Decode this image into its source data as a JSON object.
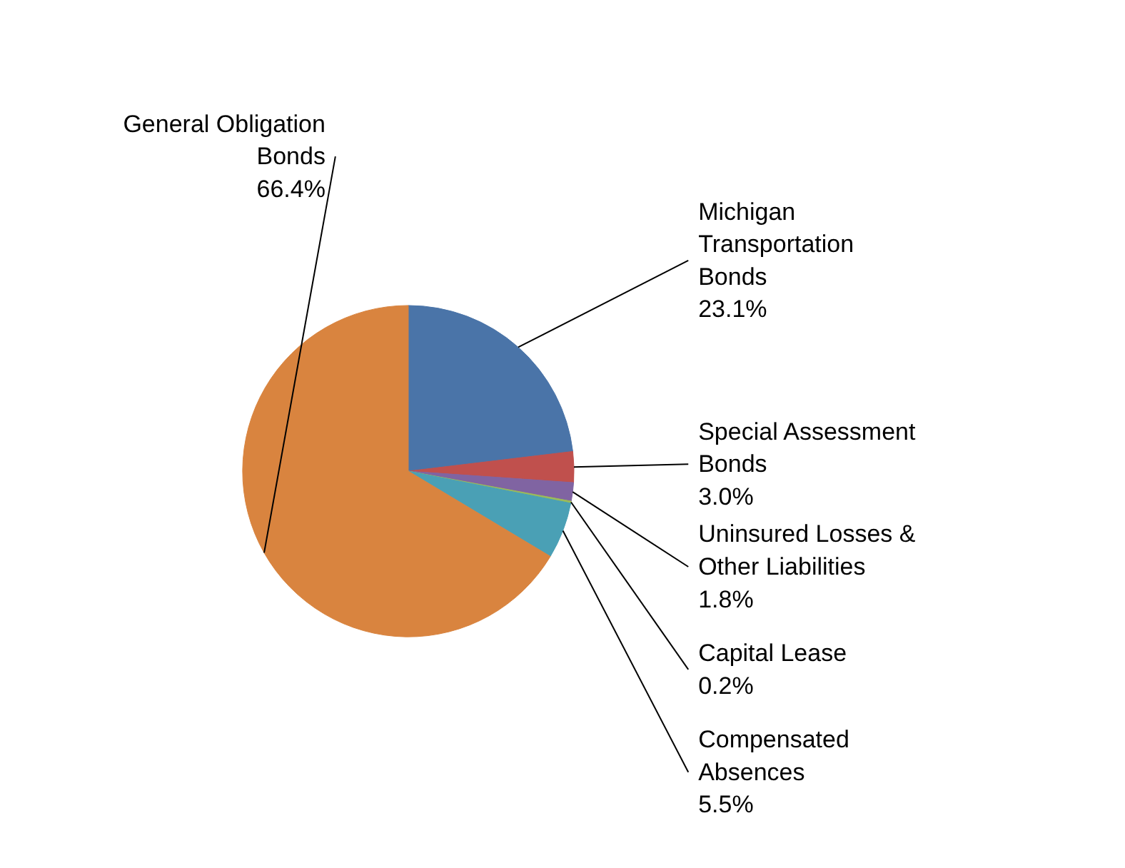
{
  "chart_data": {
    "type": "pie",
    "categories": [
      "Michigan Transportation Bonds",
      "Special Assessment Bonds",
      "Uninsured Losses & Other Liabilities",
      "Capital Lease",
      "Compensated Absences",
      "General Obligation Bonds"
    ],
    "values": [
      23.1,
      3.0,
      1.8,
      0.2,
      5.5,
      66.4
    ],
    "colors": [
      "#4a74a8",
      "#c0504d",
      "#8064a2",
      "#9bbb59",
      "#4aa0b5",
      "#d9843f"
    ],
    "value_labels": [
      "23.1%",
      "3.0%",
      "1.8%",
      "0.2%",
      "5.5%",
      "66.4%"
    ]
  }
}
